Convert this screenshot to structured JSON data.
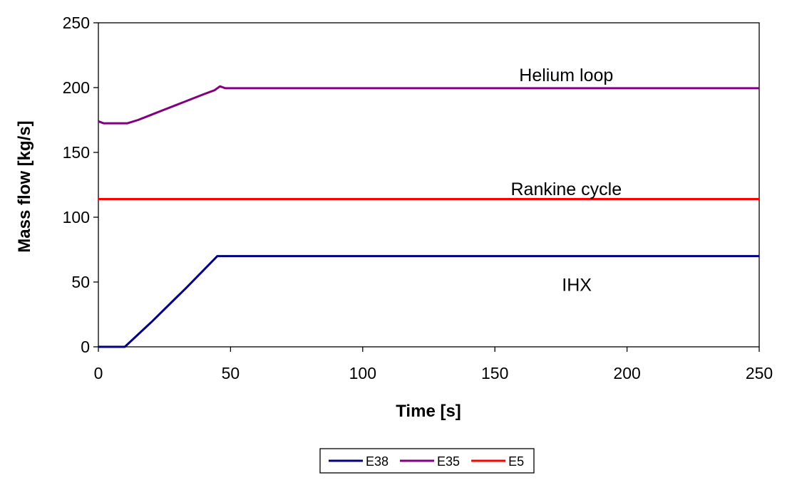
{
  "chart_data": {
    "type": "line",
    "title": "",
    "xlabel": "Time [s]",
    "ylabel": "Mass flow [kg/s]",
    "xlim": [
      0,
      250
    ],
    "ylim": [
      0,
      250
    ],
    "xticks": [
      0,
      50,
      100,
      150,
      200,
      250
    ],
    "yticks": [
      0,
      50,
      100,
      150,
      200,
      250
    ],
    "grid": false,
    "legend_position": "bottom",
    "series": [
      {
        "name": "E38",
        "color": "#000080",
        "x": [
          0,
          10,
          20,
          30,
          33,
          45,
          250
        ],
        "y": [
          0,
          0,
          19,
          39,
          45,
          70,
          70
        ]
      },
      {
        "name": "E35",
        "color": "#800080",
        "x": [
          0,
          2,
          11,
          15,
          20,
          25,
          30,
          35,
          40,
          44,
          46,
          48,
          250
        ],
        "y": [
          174,
          172.5,
          172.5,
          175,
          179,
          183,
          187,
          191,
          195,
          198,
          201,
          199.5,
          199.5
        ]
      },
      {
        "name": "E5",
        "color": "#ff0000",
        "x": [
          0,
          250
        ],
        "y": [
          114,
          114
        ]
      }
    ],
    "annotations": [
      {
        "text": "Helium loop",
        "x": 177,
        "y": 205
      },
      {
        "text": "Rankine cycle",
        "x": 177,
        "y": 117
      },
      {
        "text": "IHX",
        "x": 181,
        "y": 43
      }
    ]
  }
}
